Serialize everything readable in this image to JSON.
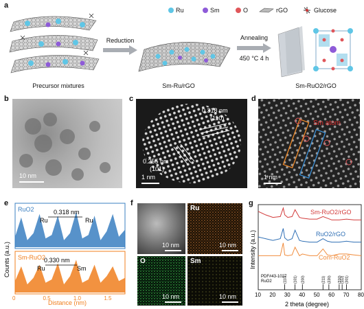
{
  "panel_a": {
    "label": "a",
    "legend": {
      "ru": "Ru",
      "sm": "Sm",
      "o": "O",
      "rgo": "rGO",
      "glucose": "Glucose",
      "ru_color": "#5fc6e6",
      "sm_color": "#8e5bd8",
      "o_color": "#e0565a"
    },
    "arrow1": "Reduction",
    "arrow2_top": "Annealing",
    "arrow2_bottom": "450 °C 4 h",
    "stage1": "Precursor mixtures",
    "stage2": "Sm-Ru/rGO",
    "stage3": "Sm-RuO2/rGO"
  },
  "panel_b": {
    "label": "b",
    "scale": "10 nm"
  },
  "panel_c": {
    "label": "c",
    "d1": "0.318 nm",
    "h1": "(110)",
    "d2": "0.255 nm",
    "h2": "(101)",
    "scale": "1 nm"
  },
  "panel_d": {
    "label": "d",
    "note": "Sm atom",
    "scale": "1 nm"
  },
  "panel_e": {
    "label": "e",
    "top_title": "RuO2",
    "top_dist": "0.318 nm",
    "top_left": "Ru",
    "top_right": "Ru",
    "bot_title": "Sm-RuO2",
    "bot_dist": "0.330 nm",
    "bot_left": "Ru",
    "bot_right": "Sm",
    "ylabel": "Counts (a.u.)",
    "xlabel": "Distance (nm)",
    "ticks": [
      "0",
      "0.5",
      "1.0",
      "1.5"
    ],
    "top_color": "#3a7fc1",
    "bot_color": "#f07f1e"
  },
  "panel_f": {
    "label": "f",
    "ru": "Ru",
    "o": "O",
    "sm": "Sm",
    "scale": "10 nm"
  },
  "panel_g": {
    "label": "g",
    "ylabel": "Intensity (a.u.)",
    "xlabel": "2 theta (degree)",
    "s1": "Sm-RuO2/rGO",
    "s2": "RuO2/rGO",
    "s3": "Com-RuO2",
    "s1_color": "#d23a3a",
    "s2_color": "#2f6fb5",
    "s3_color": "#f08c3c",
    "pdf": "PDF#43-1027",
    "pdf2": "RuO2",
    "hkl": [
      "(110)",
      "(101)",
      "(200)",
      "(211)",
      "(220)",
      "(310)",
      "(112)",
      "(301)"
    ],
    "xticks": [
      "10",
      "20",
      "30",
      "40",
      "50",
      "60",
      "70",
      "80"
    ]
  },
  "chart_data": [
    {
      "type": "line",
      "title": "",
      "xlabel": "Distance (nm)",
      "ylabel": "Counts (a.u.)",
      "xlim": [
        0,
        1.8
      ],
      "series": [
        {
          "name": "RuO2",
          "x": [
            0.0,
            0.1,
            0.2,
            0.3,
            0.4,
            0.5,
            0.6,
            0.7,
            0.8,
            0.9,
            1.0,
            1.1,
            1.2,
            1.3,
            1.4,
            1.5,
            1.6,
            1.7,
            1.8
          ],
          "values": [
            0.3,
            0.85,
            0.2,
            0.4,
            0.95,
            0.25,
            0.35,
            0.9,
            0.2,
            0.4,
            1.0,
            0.25,
            0.35,
            0.9,
            0.2,
            0.45,
            0.95,
            0.3,
            0.5
          ]
        },
        {
          "name": "Sm-RuO2",
          "x": [
            0.0,
            0.1,
            0.2,
            0.3,
            0.4,
            0.5,
            0.6,
            0.7,
            0.8,
            0.9,
            1.0,
            1.1,
            1.2,
            1.3,
            1.4,
            1.5,
            1.6,
            1.7,
            1.8
          ],
          "values": [
            0.35,
            0.8,
            0.25,
            0.45,
            0.85,
            0.3,
            0.4,
            0.9,
            0.25,
            0.5,
            1.0,
            0.3,
            0.4,
            0.85,
            0.3,
            0.5,
            0.8,
            0.35,
            0.45
          ]
        }
      ]
    },
    {
      "type": "line",
      "title": "",
      "xlabel": "2 theta (degree)",
      "ylabel": "Intensity (a.u.)",
      "xlim": [
        10,
        80
      ],
      "series": [
        {
          "name": "Sm-RuO2/rGO",
          "x": [
            10,
            15,
            20,
            25,
            27,
            28,
            30,
            33,
            35,
            38,
            40,
            45,
            50,
            54,
            57,
            60,
            65,
            70,
            75,
            80
          ],
          "values": [
            0.92,
            0.88,
            0.85,
            0.86,
            0.96,
            0.88,
            0.85,
            0.86,
            0.94,
            0.85,
            0.84,
            0.83,
            0.83,
            0.86,
            0.84,
            0.82,
            0.82,
            0.83,
            0.82,
            0.82
          ]
        },
        {
          "name": "RuO2/rGO",
          "x": [
            10,
            15,
            20,
            25,
            27,
            28,
            30,
            33,
            35,
            38,
            40,
            45,
            50,
            54,
            57,
            60,
            65,
            70,
            75,
            80
          ],
          "values": [
            0.62,
            0.6,
            0.58,
            0.6,
            0.72,
            0.61,
            0.58,
            0.6,
            0.7,
            0.58,
            0.57,
            0.56,
            0.56,
            0.6,
            0.57,
            0.56,
            0.56,
            0.57,
            0.56,
            0.56
          ]
        },
        {
          "name": "Com-RuO2",
          "x": [
            10,
            15,
            20,
            25,
            27,
            28,
            30,
            33,
            35,
            38,
            40,
            45,
            50,
            54,
            57,
            60,
            65,
            70,
            75,
            80
          ],
          "values": [
            0.4,
            0.4,
            0.4,
            0.4,
            0.55,
            0.41,
            0.4,
            0.41,
            0.5,
            0.4,
            0.42,
            0.4,
            0.4,
            0.48,
            0.41,
            0.4,
            0.42,
            0.42,
            0.41,
            0.4
          ]
        }
      ]
    }
  ]
}
